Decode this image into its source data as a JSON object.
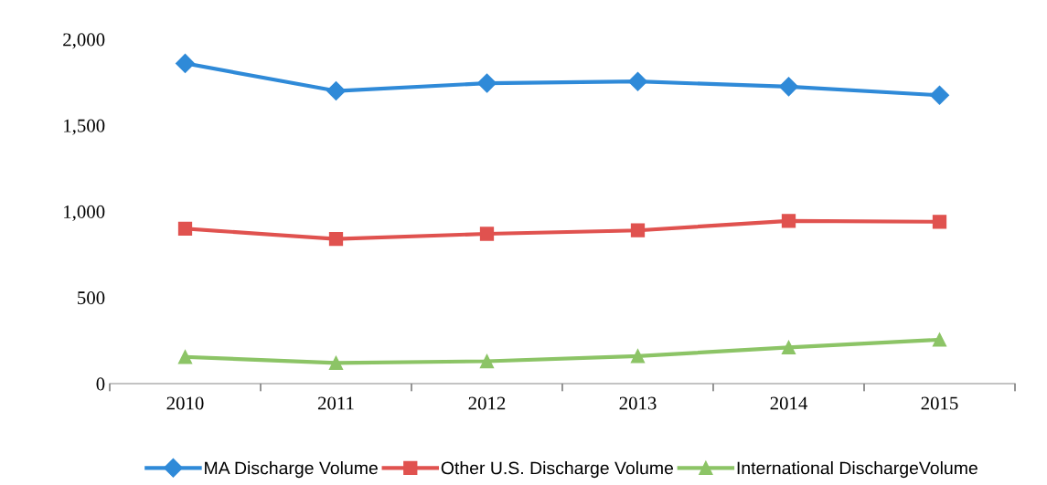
{
  "chart_data": {
    "type": "line",
    "categories": [
      "2010",
      "2011",
      "2012",
      "2013",
      "2014",
      "2015"
    ],
    "series": [
      {
        "name": "MA Discharge Volume",
        "color": "#2f8ad8",
        "marker": "diamond",
        "values": [
          1860,
          1700,
          1745,
          1755,
          1725,
          1675
        ]
      },
      {
        "name": "Other U.S. Discharge Volume",
        "color": "#e0524f",
        "marker": "square",
        "values": [
          900,
          840,
          870,
          890,
          945,
          940
        ]
      },
      {
        "name": "International DischargeVolume",
        "color": "#8cc466",
        "marker": "triangle",
        "values": [
          155,
          120,
          130,
          160,
          210,
          255
        ]
      }
    ],
    "ylim": [
      0,
      2000
    ],
    "yticks": [
      {
        "value": 0,
        "label": "0"
      },
      {
        "value": 500,
        "label": "500"
      },
      {
        "value": 1000,
        "label": "1,000"
      },
      {
        "value": 1500,
        "label": "1,500"
      },
      {
        "value": 2000,
        "label": "2,000"
      }
    ],
    "grid": false,
    "legend": "bottom",
    "line_style": "solid"
  }
}
